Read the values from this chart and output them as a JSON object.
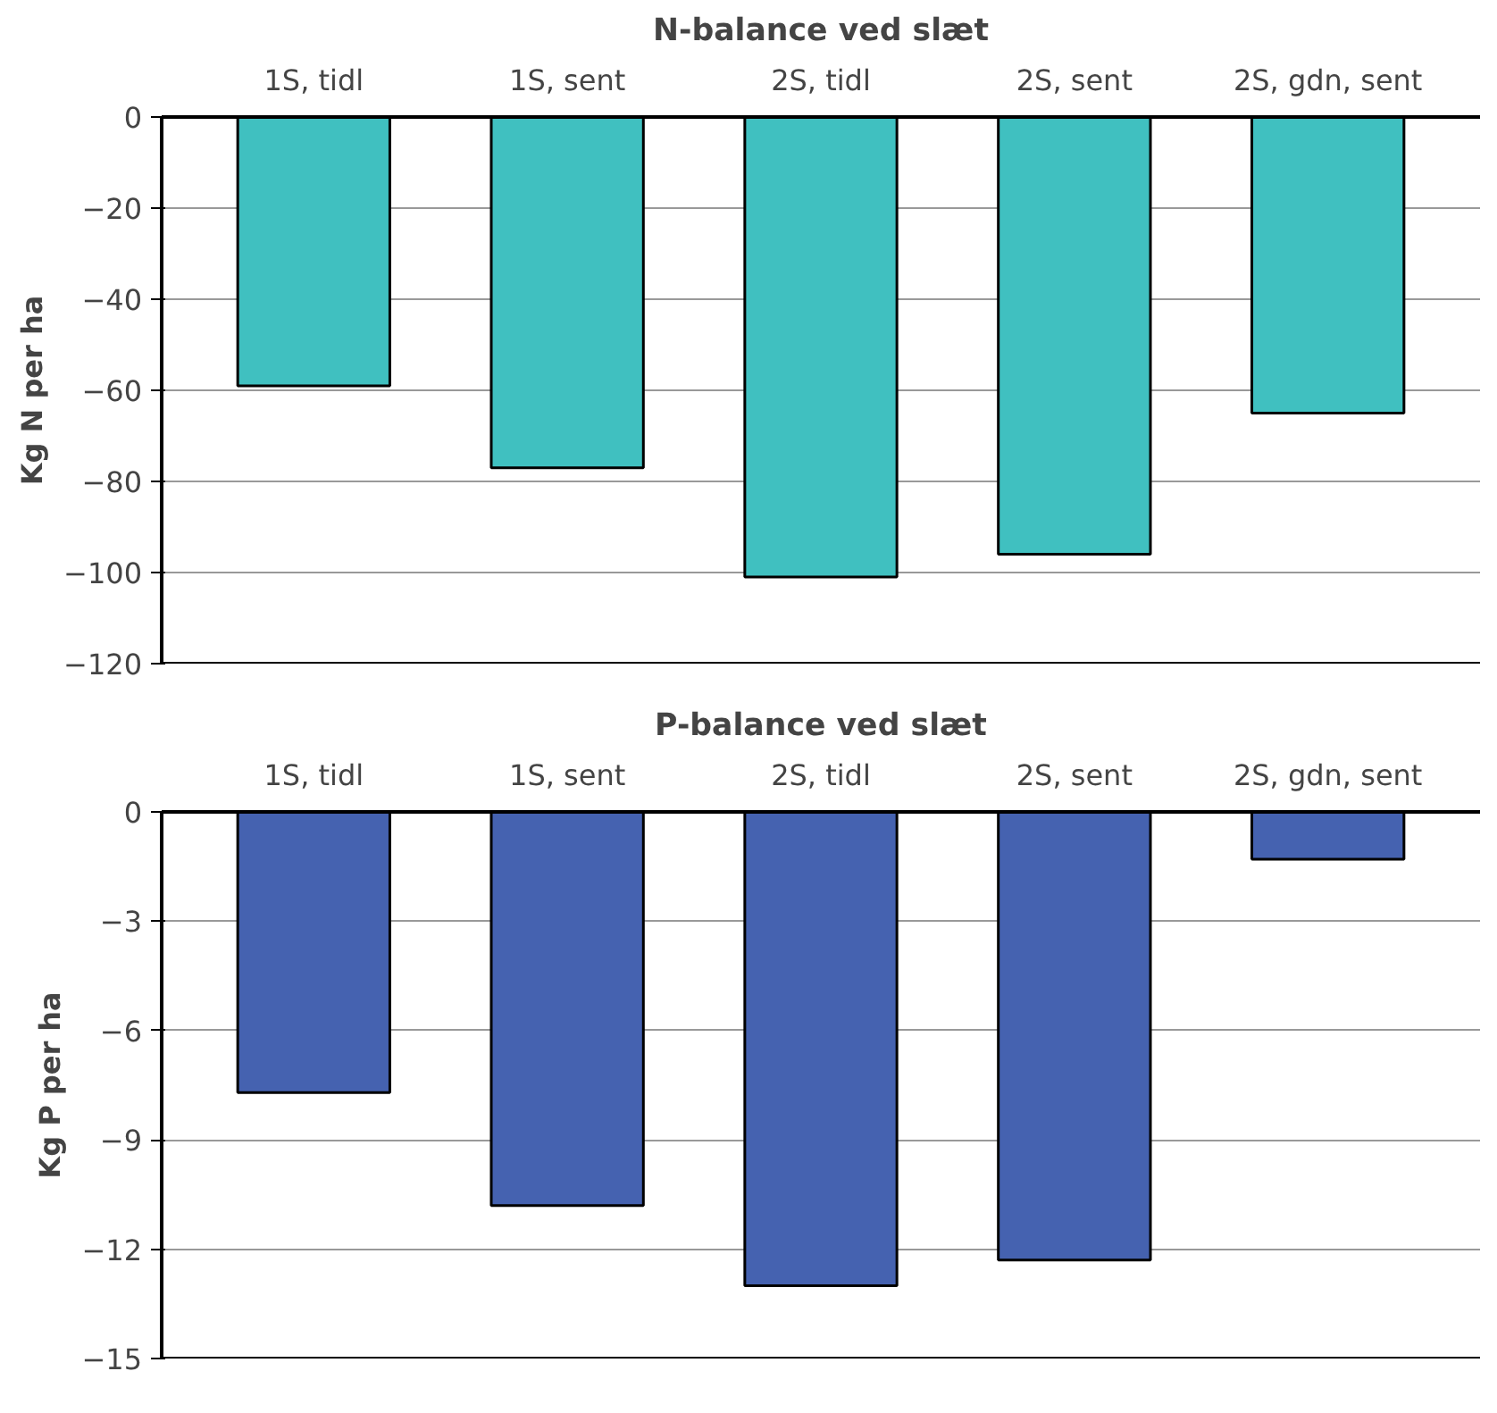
{
  "chart_data": [
    {
      "type": "bar",
      "title": "N-balance ved slæt",
      "ylabel": "Kg N per ha",
      "categories": [
        "1S, tidl",
        "1S, sent",
        "2S, tidl",
        "2S, sent",
        "2S, gdn, sent"
      ],
      "series": [
        {
          "color": "#40c0c0",
          "values": [
            -59,
            -77,
            -101,
            -96,
            -65
          ]
        }
      ],
      "ylim": [
        -120,
        0
      ],
      "yticks": [
        -120,
        -100,
        -80,
        -60,
        -40,
        -20,
        0
      ],
      "grid": "y"
    },
    {
      "type": "bar",
      "title": "P-balance ved slæt",
      "ylabel": "Kg P per ha",
      "categories": [
        "1S, tidl",
        "1S, sent",
        "2S, tidl",
        "2S, sent",
        "2S, gdn, sent"
      ],
      "series": [
        {
          "color": "#4562b0",
          "values": [
            -7.7,
            -10.8,
            -13.0,
            -12.3,
            -1.3
          ]
        }
      ],
      "ylim": [
        -15,
        0
      ],
      "yticks": [
        -15,
        -12,
        -9,
        -6,
        -3,
        0
      ],
      "grid": "y"
    }
  ]
}
